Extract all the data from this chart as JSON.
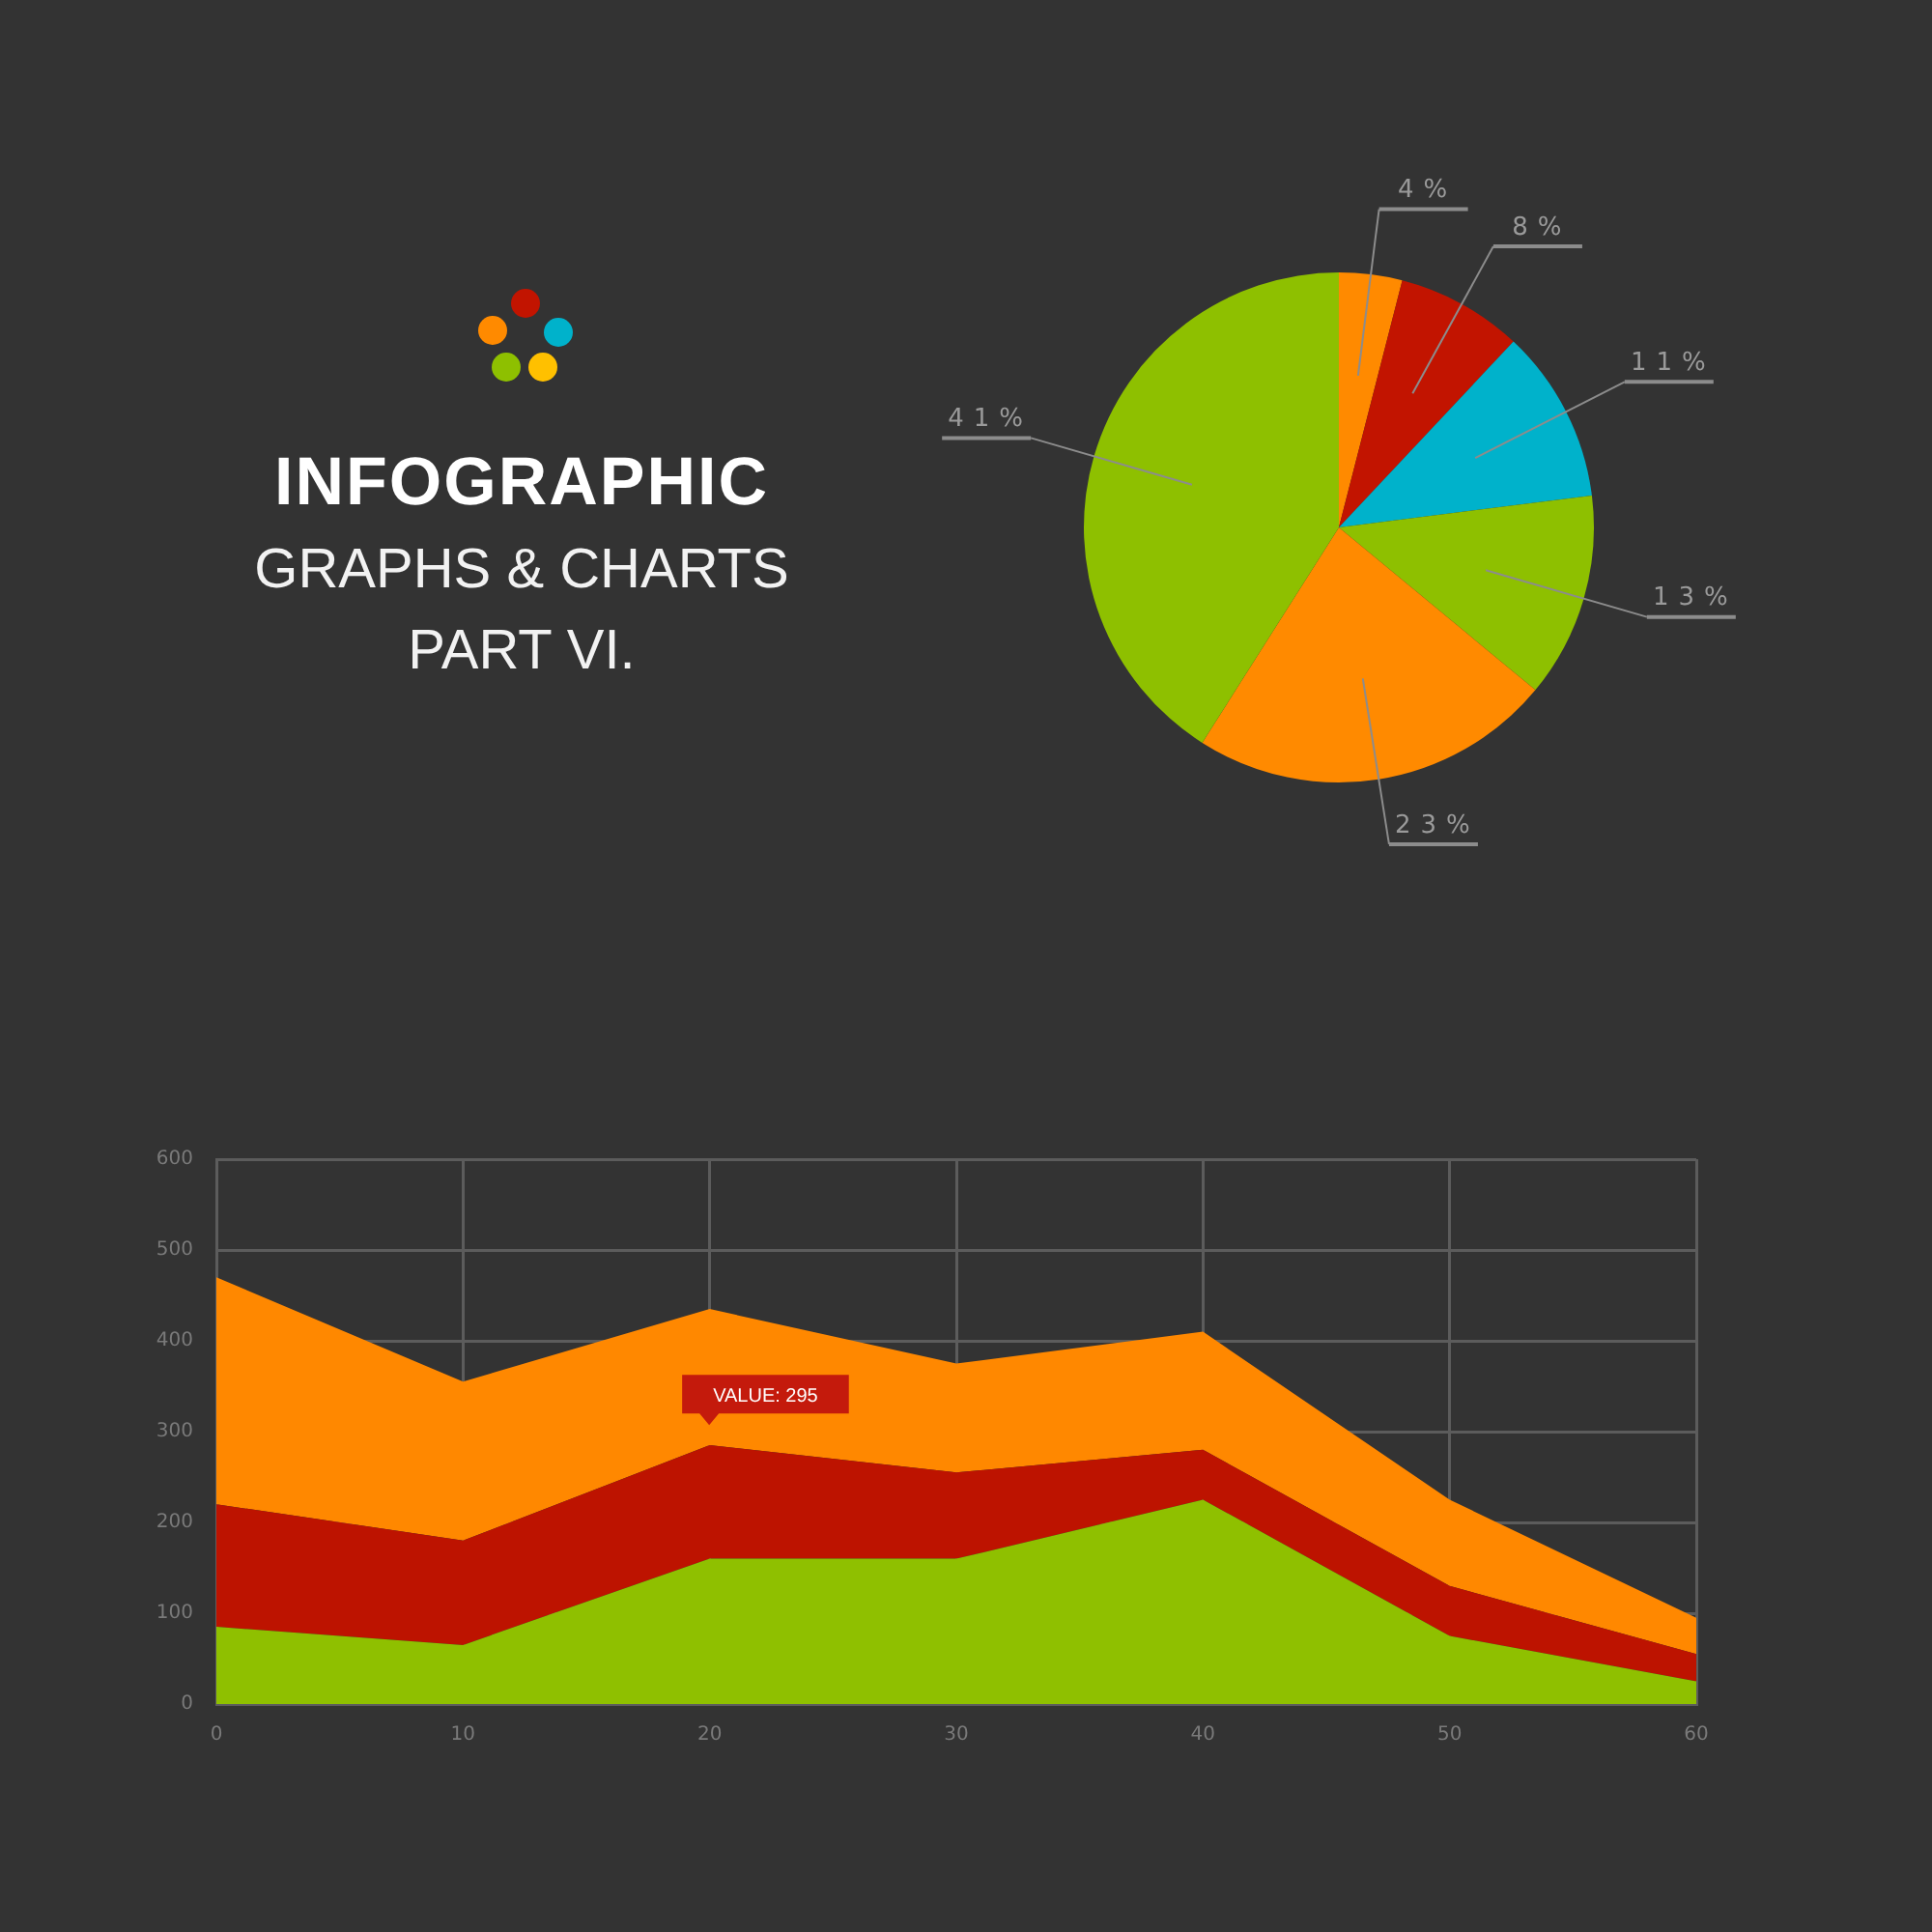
{
  "chart_data": [
    {
      "type": "other",
      "title": "INFOGRAPHIC",
      "subtitle": "GRAPHS & CHARTS\nPART VI."
    },
    {
      "type": "pie",
      "categories": [
        null,
        null,
        null,
        null,
        null,
        null
      ],
      "values": [
        4,
        8,
        11,
        13,
        23,
        41
      ],
      "colors": [
        "#ff8a00",
        "#c21400",
        "#00b2cb",
        "#8ec000",
        "#ff8a00",
        "#8ec000"
      ],
      "value_labels": [
        "4%",
        "8%",
        "11%",
        "13%",
        "23%",
        "41%"
      ]
    },
    {
      "type": "area",
      "stacked": true,
      "x": [
        0,
        10,
        20,
        30,
        40,
        50,
        60
      ],
      "series": [
        {
          "color": "#8fc000",
          "values": [
            85,
            65,
            160,
            160,
            225,
            75,
            25
          ]
        },
        {
          "color": "#bd1300",
          "values": [
            135,
            115,
            125,
            95,
            55,
            55,
            30
          ]
        },
        {
          "color": "#ff8800",
          "values": [
            250,
            175,
            150,
            120,
            130,
            95,
            40
          ]
        }
      ],
      "xlim": [
        0,
        60
      ],
      "xticks": [
        0,
        10,
        20,
        30,
        40,
        50,
        60
      ],
      "ylim": [
        0,
        600
      ],
      "yticks": [
        0,
        100,
        200,
        300,
        400,
        500,
        600
      ],
      "grid": true,
      "annotations": [
        "VALUE: 295"
      ]
    }
  ]
}
